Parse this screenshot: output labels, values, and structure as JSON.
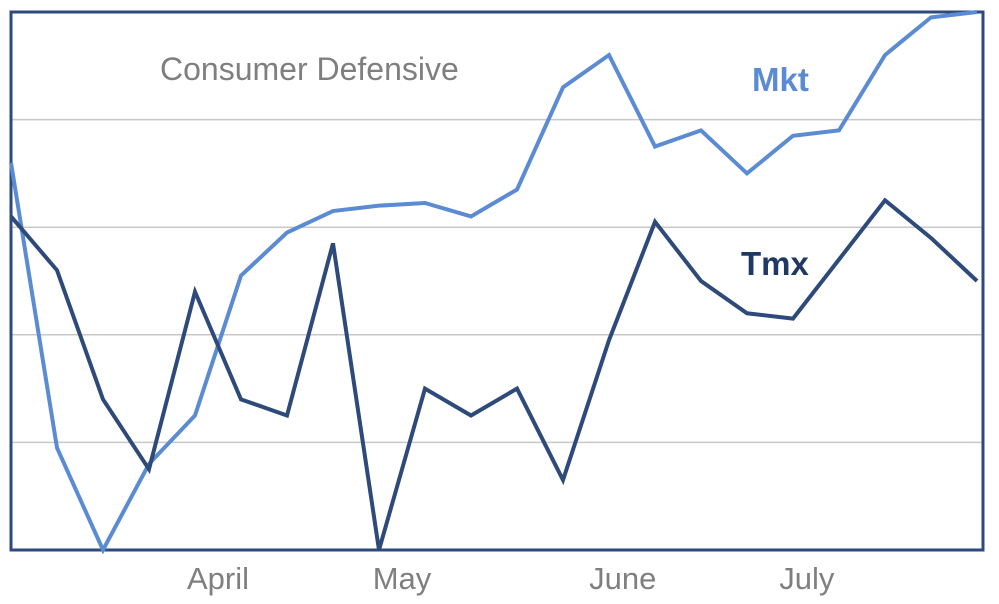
{
  "chart_data": {
    "type": "line",
    "title": "Consumer Defensive",
    "xlabel": "",
    "ylabel": "",
    "ylim": [
      0,
      100
    ],
    "grid": true,
    "x_tick_labels": [
      {
        "label": "April",
        "index": 4.5
      },
      {
        "label": "May",
        "index": 8.5
      },
      {
        "label": "June",
        "index": 13.3
      },
      {
        "label": "July",
        "index": 17.3
      }
    ],
    "series": [
      {
        "name": "Mkt",
        "color": "#5b8bd2",
        "values": [
          72,
          19,
          0,
          16,
          25,
          51,
          59,
          63,
          64,
          64.5,
          62,
          67,
          86,
          92,
          75,
          78,
          70,
          77,
          78,
          92,
          99,
          100
        ]
      },
      {
        "name": "Tmx",
        "color": "#2e4a7a",
        "values": [
          62,
          52,
          28,
          15,
          48,
          28,
          25,
          57,
          0,
          30,
          25,
          30,
          13,
          39,
          61,
          50,
          44,
          43,
          54,
          65,
          58,
          50
        ]
      }
    ],
    "legend": [
      {
        "label": "Mkt",
        "color": "#5b8bd2"
      },
      {
        "label": "Tmx",
        "color": "#2e4a7a"
      }
    ]
  }
}
